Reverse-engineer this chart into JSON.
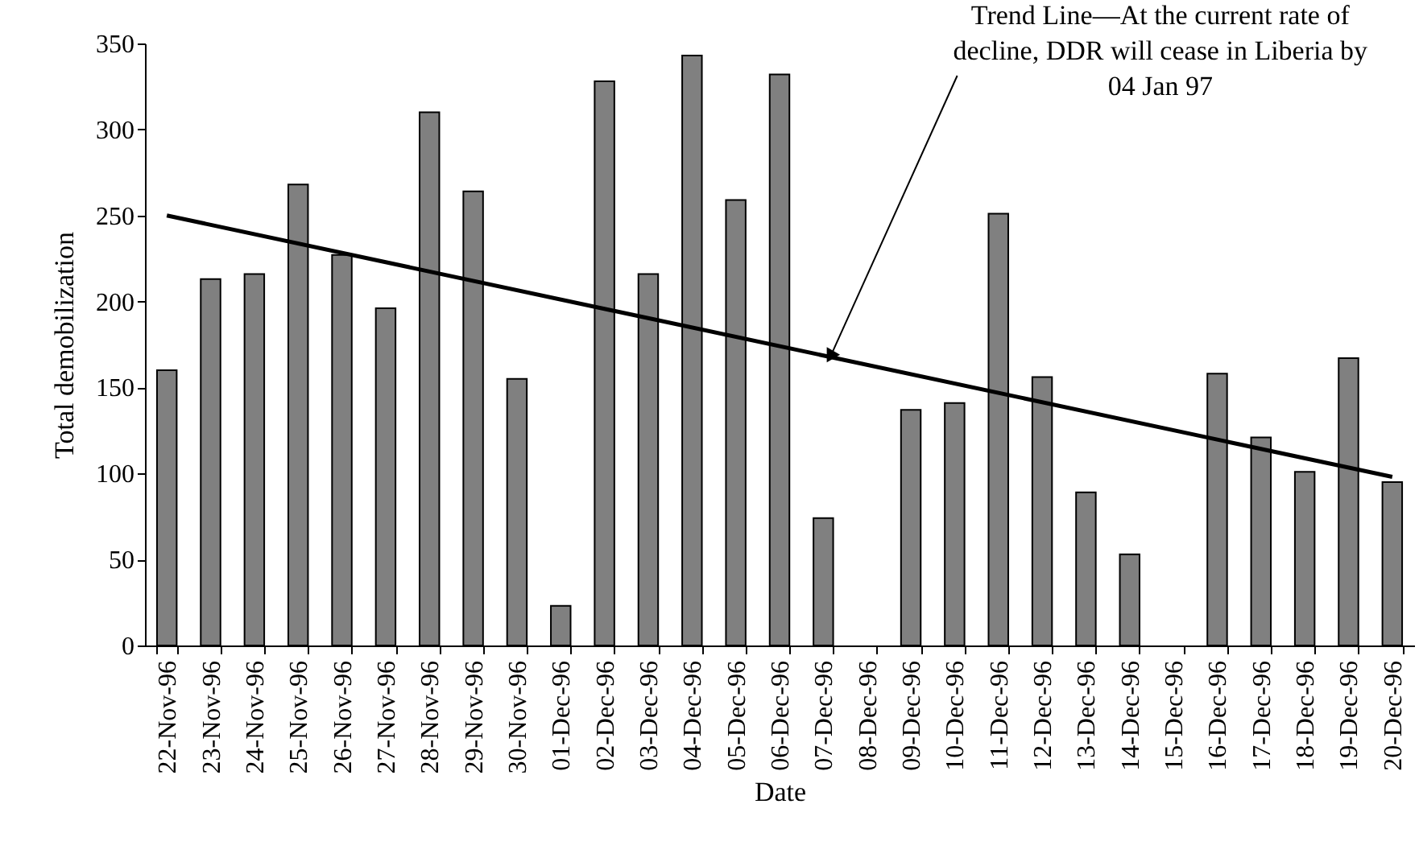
{
  "chart_data": {
    "type": "bar",
    "xlabel": "Date",
    "ylabel": "Total demobilization",
    "categories": [
      "22-Nov-96",
      "23-Nov-96",
      "24-Nov-96",
      "25-Nov-96",
      "26-Nov-96",
      "27-Nov-96",
      "28-Nov-96",
      "29-Nov-96",
      "30-Nov-96",
      "01-Dec-96",
      "02-Dec-96",
      "03-Dec-96",
      "04-Dec-96",
      "05-Dec-96",
      "06-Dec-96",
      "07-Dec-96",
      "08-Dec-96",
      "09-Dec-96",
      "10-Dec-96",
      "11-Dec-96",
      "12-Dec-96",
      "13-Dec-96",
      "14-Dec-96",
      "15-Dec-96",
      "16-Dec-96",
      "17-Dec-96",
      "18-Dec-96",
      "19-Dec-96",
      "20-Dec-96"
    ],
    "series": [
      {
        "color": "#808080",
        "values": [
          160,
          213,
          216,
          268,
          227,
          196,
          310,
          264,
          155,
          23,
          328,
          216,
          343,
          259,
          332,
          74,
          0,
          137,
          141,
          251,
          156,
          89,
          53,
          0,
          158,
          121,
          101,
          167,
          95
        ]
      },
      {
        "type": "line",
        "color": "#000000",
        "x": [
          "22-Nov-96",
          "20-Dec-96"
        ],
        "values": [
          250,
          98
        ]
      }
    ],
    "ylim": [
      0,
      350
    ],
    "yticks": [
      0,
      50,
      100,
      150,
      200,
      250,
      300,
      350
    ],
    "grid": false,
    "annotations": [
      {
        "text": "Trend Line—At the current rate of\ndecline, DDR will cease in Liberia by\n04 Jan 97",
        "x": "07-Dec-96",
        "y": 169
      }
    ]
  }
}
